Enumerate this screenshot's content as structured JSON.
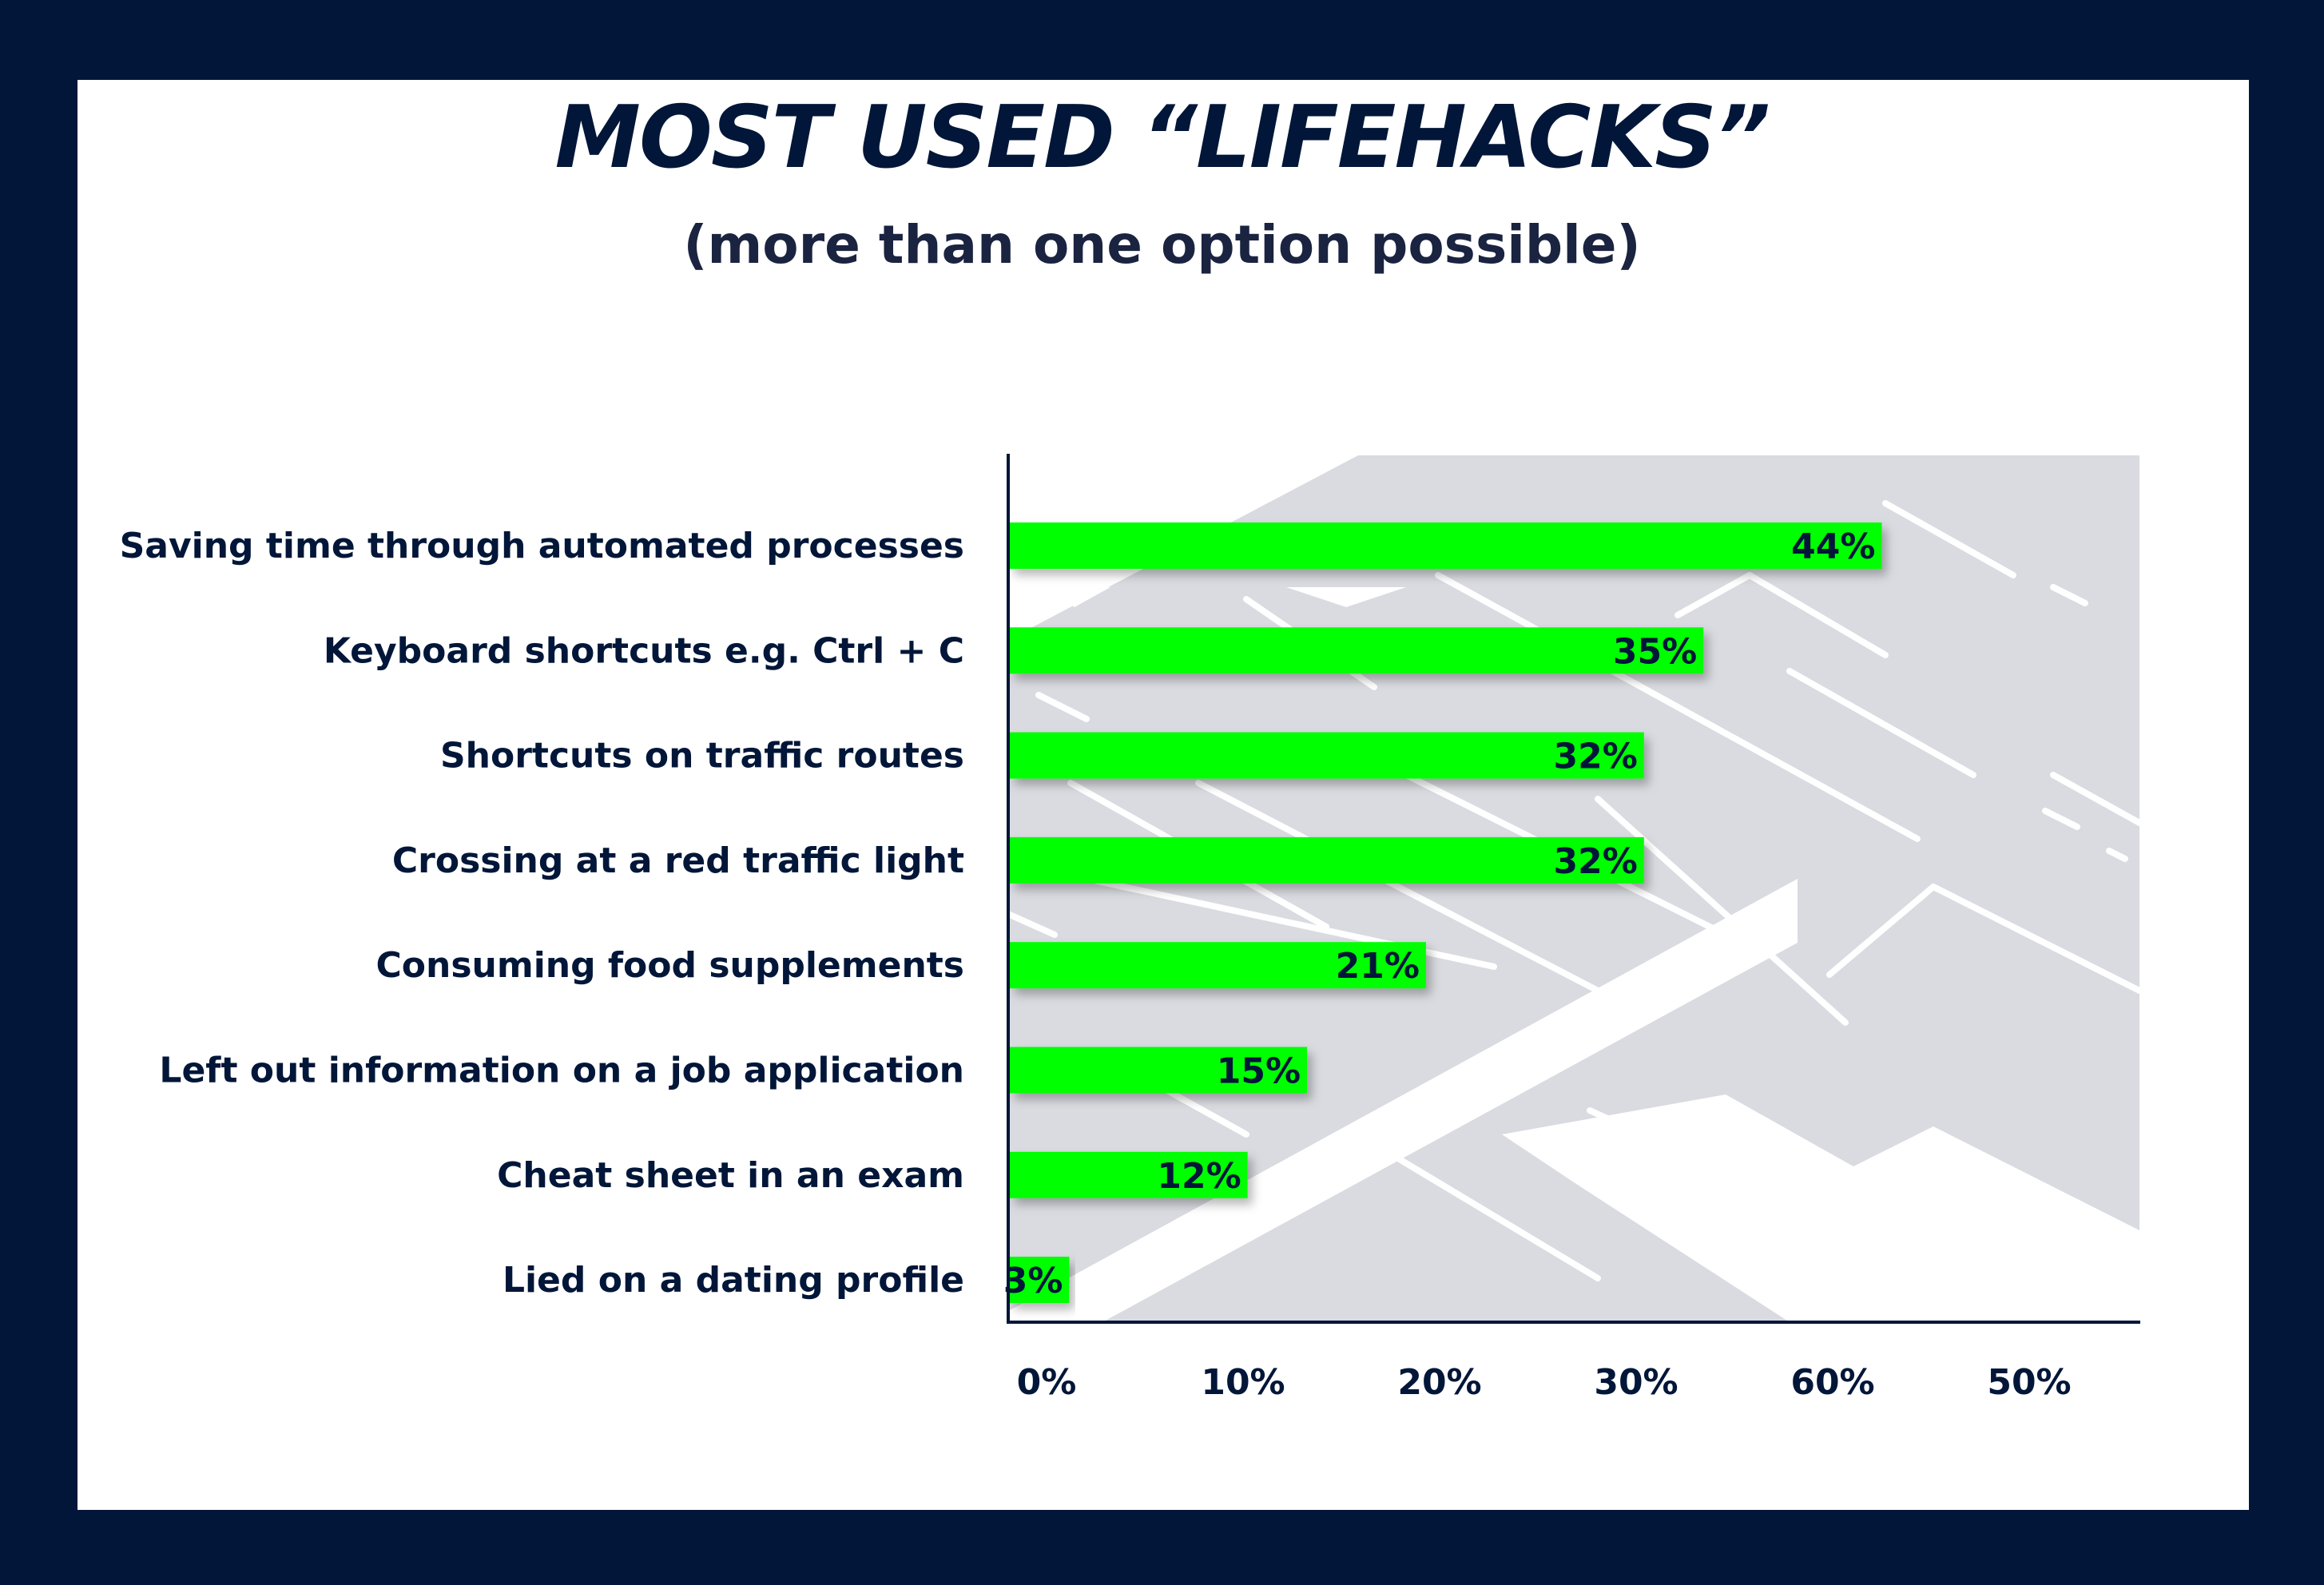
{
  "chart_data": {
    "type": "bar",
    "orientation": "horizontal",
    "title": "MOST USED “LIFEHACKS”",
    "subtitle": "(more than one option possible)",
    "categories": [
      "Saving time through automated processes",
      "Keyboard shortcuts e.g. Ctrl + C",
      "Shortcuts on traffic routes",
      "Crossing at a red traffic light",
      "Consuming food supplements",
      "Left out information on a job application",
      "Cheat sheet in an exam",
      "Lied on a dating profile"
    ],
    "values": [
      44,
      35,
      32,
      32,
      21,
      15,
      12,
      3
    ],
    "value_labels": [
      "44%",
      "35%",
      "32%",
      "32%",
      "21%",
      "15%",
      "12%",
      "3%"
    ],
    "x_ticks": [
      "0%",
      "10%",
      "20%",
      "30%",
      "60%",
      "50%"
    ],
    "xlim": [
      0,
      57
    ],
    "grid": false,
    "legend": "none",
    "colors": {
      "bar": "#00ff00",
      "text": "#011638",
      "frame": "#011638",
      "card": "#ffffff",
      "background_pattern": "#d9dbe0"
    }
  }
}
